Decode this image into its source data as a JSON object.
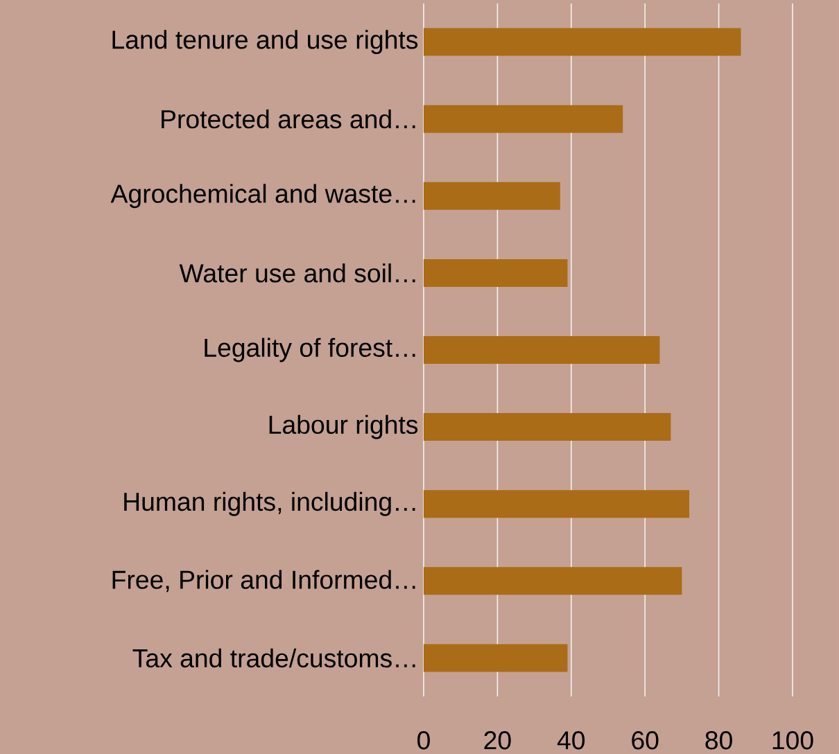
{
  "chart_data": {
    "type": "bar",
    "orientation": "horizontal",
    "categories": [
      "Land tenure and use rights",
      "Protected areas and…",
      "Agrochemical and waste…",
      "Water use and soil…",
      "Legality of forest…",
      "Labour rights",
      "Human rights, including…",
      "Free, Prior and Informed…",
      "Tax and trade/customs…"
    ],
    "values": [
      86,
      54,
      37,
      39,
      64,
      67,
      72,
      70,
      39
    ],
    "color": "#aa6c17",
    "xlim": [
      0,
      100
    ],
    "xticks": [
      0,
      20,
      40,
      60,
      80,
      100
    ],
    "grid": "x"
  }
}
